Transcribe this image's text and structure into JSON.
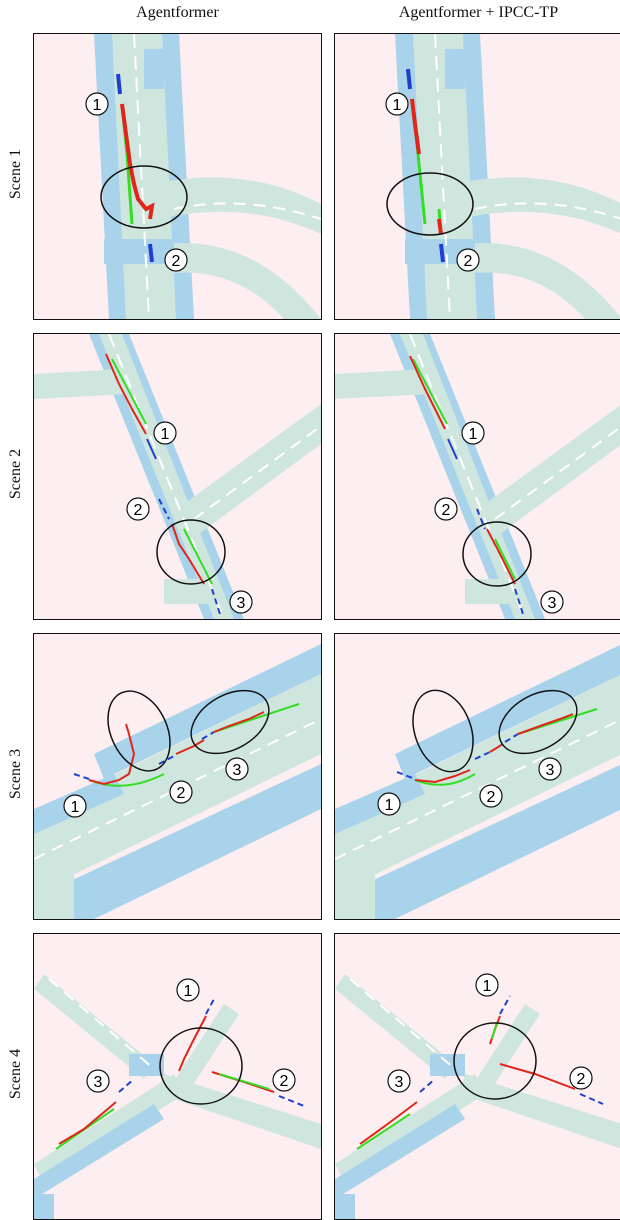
{
  "column_titles": [
    "Agentformer",
    "Agentformer + IPCC-TP"
  ],
  "scene_labels": [
    "Scene 1",
    "Scene 2",
    "Scene 3",
    "Scene 4"
  ],
  "agent_markers": {
    "one": "1",
    "two": "2",
    "three": "3"
  },
  "colors": {
    "background": "#fdeef1",
    "road": "#cfe6df",
    "walkway": "#a9d3ea",
    "history": "#1f3fd1",
    "ground_truth": "#33dd22",
    "prediction": "#e0261a",
    "highlight_ellipse": "#111111"
  }
}
